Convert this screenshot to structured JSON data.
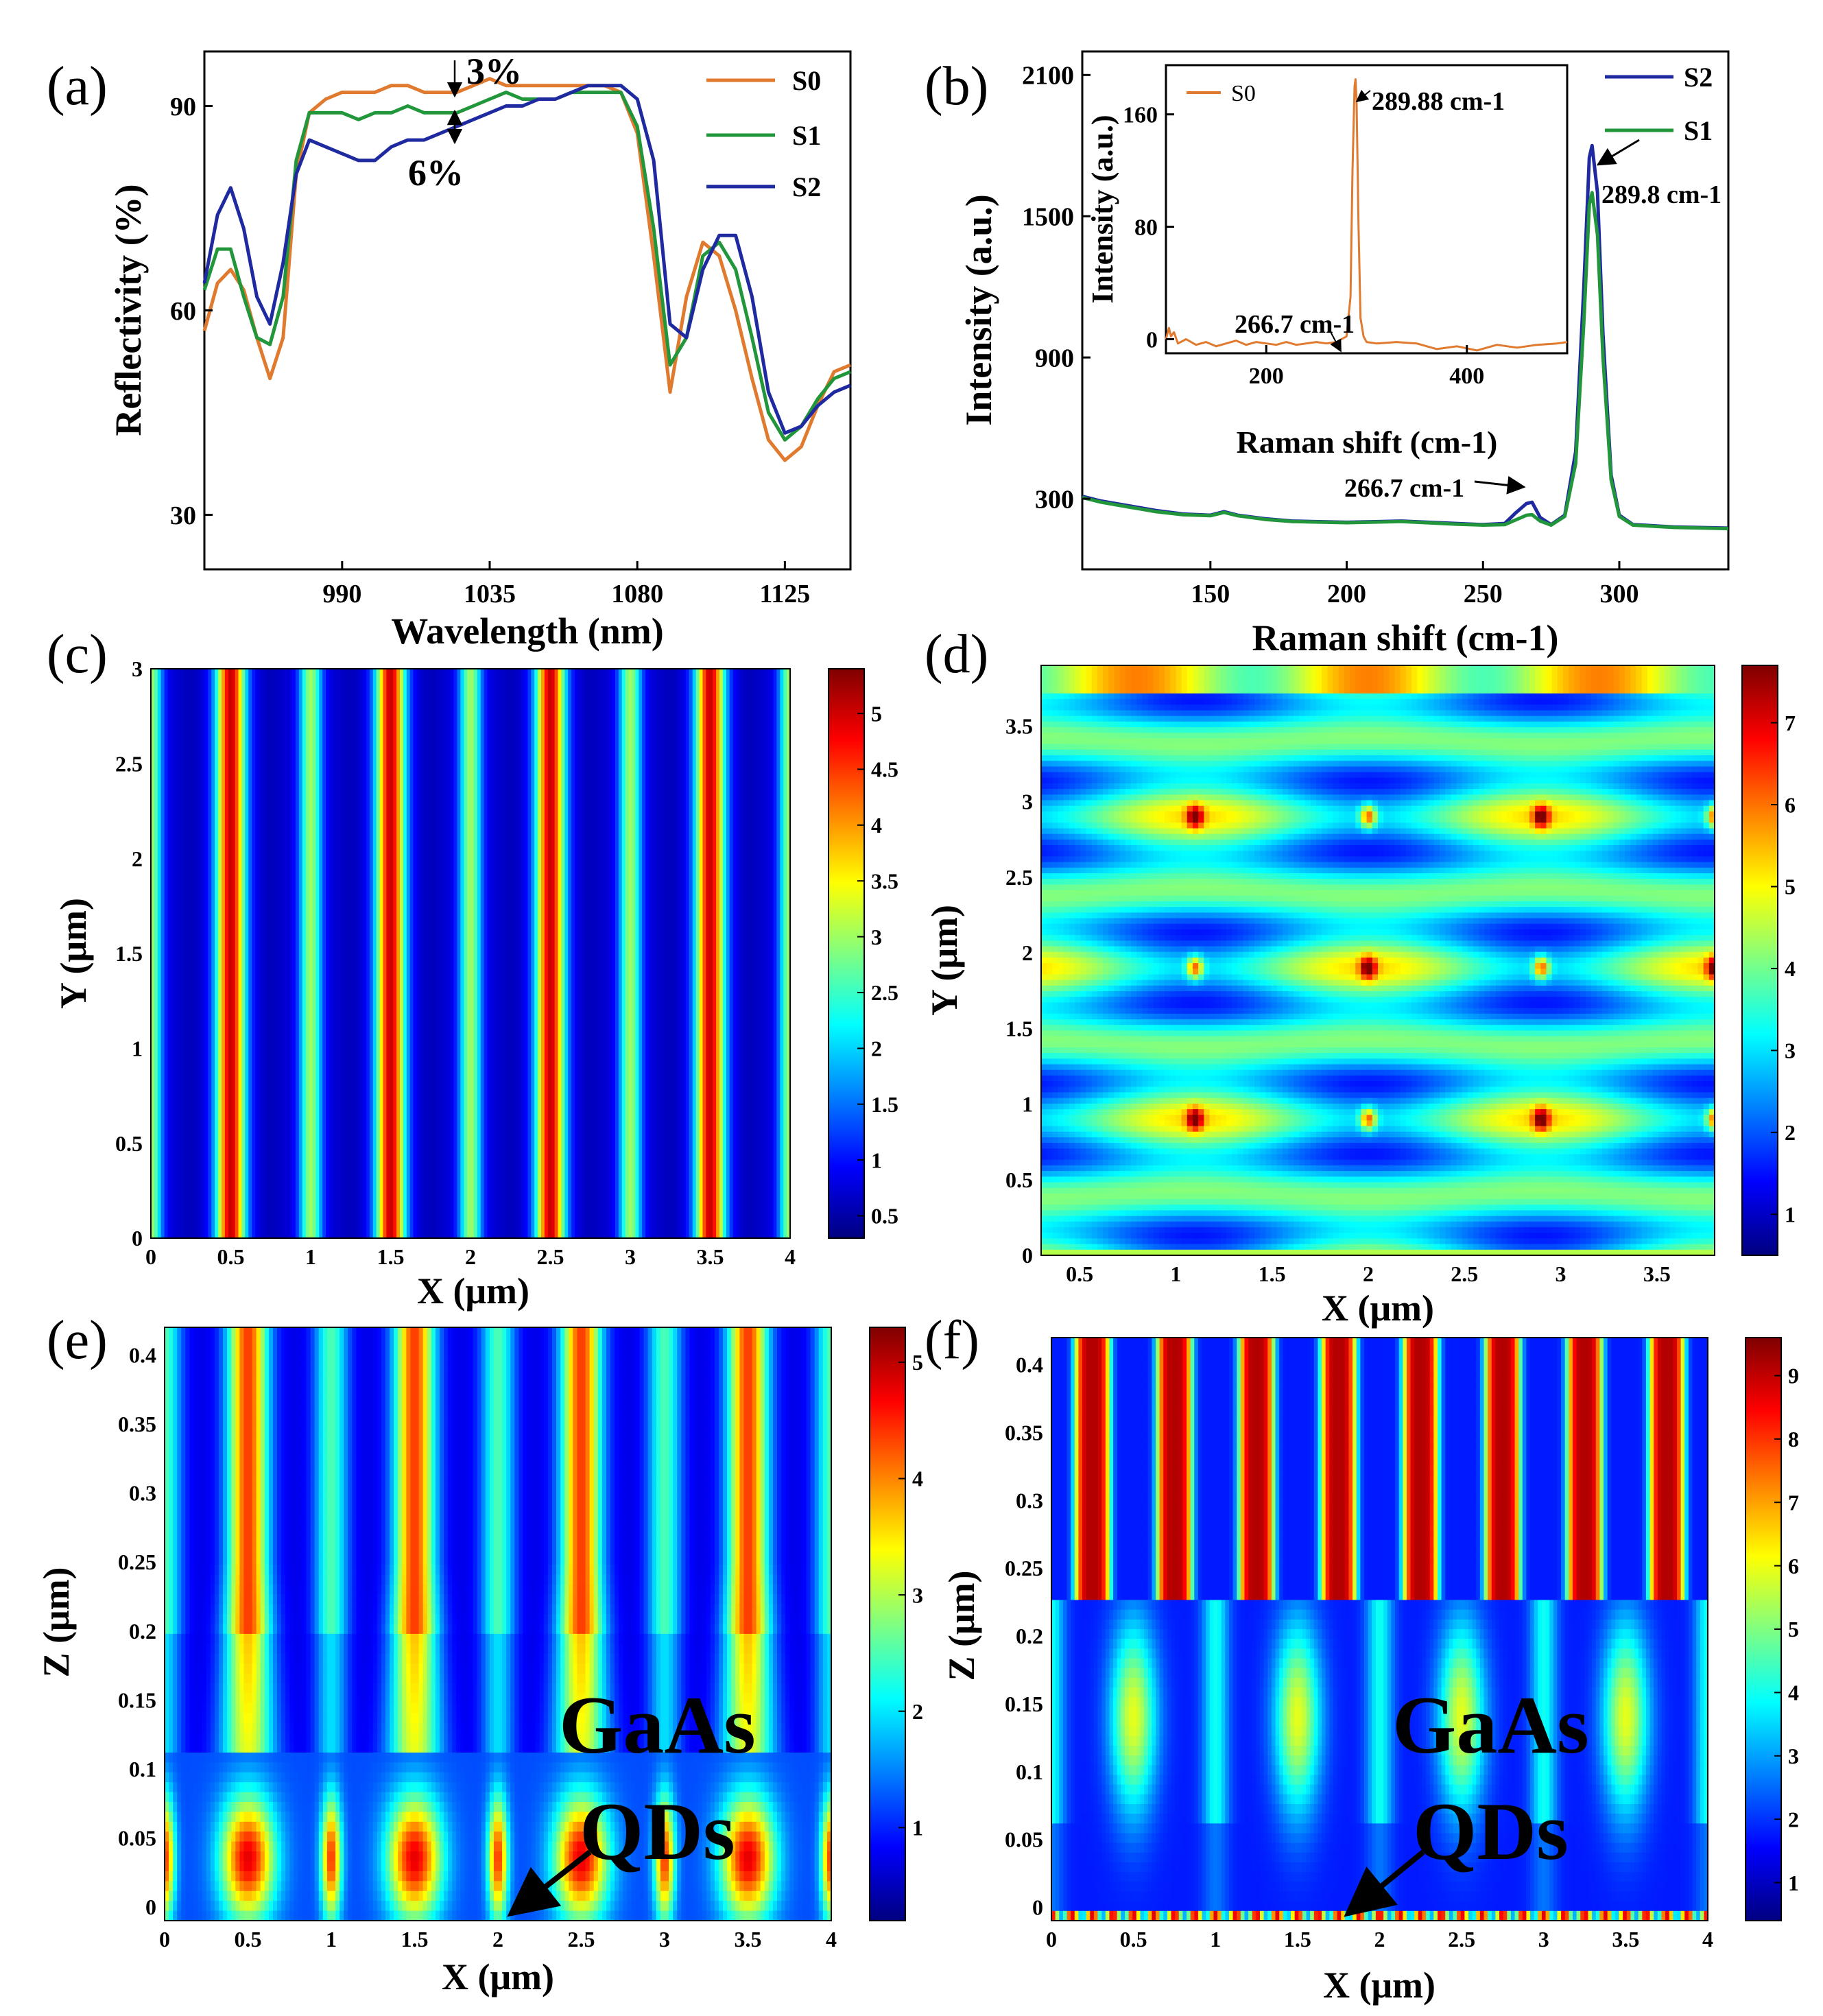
{
  "colors": {
    "s0": "#e07a2f",
    "s1": "#22963a",
    "s2": "#1f2aa0",
    "jet": [
      "#00007f",
      "#0000ff",
      "#0080ff",
      "#00ffff",
      "#80ff80",
      "#ffff00",
      "#ff8000",
      "#ff0000",
      "#7f0000"
    ]
  },
  "chart_data": [
    {
      "panel": "(a)",
      "type": "line",
      "xlabel": "Wavelength (nm)",
      "ylabel": "Reflectivity (%)",
      "xlim": [
        948,
        1145
      ],
      "ylim": [
        22,
        98
      ],
      "xticks": [
        "990",
        "1035",
        "1080",
        "1125"
      ],
      "yticks": [
        "30",
        "60",
        "90"
      ],
      "legend": [
        "S0",
        "S1",
        "S2"
      ],
      "annotations": [
        "3%",
        "6%"
      ],
      "series": [
        {
          "name": "S0",
          "x": [
            948,
            952,
            956,
            960,
            964,
            968,
            972,
            976,
            980,
            985,
            990,
            995,
            1000,
            1005,
            1010,
            1015,
            1020,
            1025,
            1030,
            1035,
            1040,
            1045,
            1050,
            1055,
            1060,
            1065,
            1070,
            1075,
            1080,
            1085,
            1090,
            1095,
            1100,
            1105,
            1110,
            1115,
            1120,
            1125,
            1130,
            1135,
            1140,
            1145
          ],
          "values": [
            57,
            64,
            66,
            63,
            56,
            50,
            56,
            80,
            89,
            91,
            92,
            92,
            92,
            93,
            93,
            92,
            92,
            92,
            93,
            94,
            93,
            93,
            93,
            93,
            93,
            93,
            93,
            92,
            86,
            68,
            48,
            62,
            70,
            68,
            60,
            50,
            41,
            38,
            40,
            46,
            51,
            52
          ]
        },
        {
          "name": "S1",
          "x": [
            948,
            952,
            956,
            960,
            964,
            968,
            972,
            976,
            980,
            985,
            990,
            995,
            1000,
            1005,
            1010,
            1015,
            1020,
            1025,
            1030,
            1035,
            1040,
            1045,
            1050,
            1055,
            1060,
            1065,
            1070,
            1075,
            1080,
            1085,
            1090,
            1095,
            1100,
            1105,
            1110,
            1115,
            1120,
            1125,
            1130,
            1135,
            1140,
            1145
          ],
          "values": [
            63,
            69,
            69,
            62,
            56,
            55,
            62,
            82,
            89,
            89,
            89,
            88,
            89,
            89,
            90,
            89,
            89,
            89,
            90,
            91,
            92,
            91,
            91,
            91,
            92,
            92,
            92,
            92,
            87,
            72,
            52,
            56,
            68,
            70,
            66,
            56,
            45,
            41,
            43,
            47,
            50,
            51
          ]
        },
        {
          "name": "S2",
          "x": [
            948,
            952,
            956,
            960,
            964,
            968,
            972,
            976,
            980,
            985,
            990,
            995,
            1000,
            1005,
            1010,
            1015,
            1020,
            1025,
            1030,
            1035,
            1040,
            1045,
            1050,
            1055,
            1060,
            1065,
            1070,
            1075,
            1080,
            1085,
            1090,
            1095,
            1100,
            1105,
            1110,
            1115,
            1120,
            1125,
            1130,
            1135,
            1140,
            1145
          ],
          "values": [
            64,
            74,
            78,
            72,
            62,
            58,
            67,
            80,
            85,
            84,
            83,
            82,
            82,
            84,
            85,
            85,
            86,
            87,
            88,
            89,
            90,
            90,
            91,
            91,
            92,
            93,
            93,
            93,
            91,
            82,
            58,
            56,
            66,
            71,
            71,
            62,
            48,
            42,
            43,
            46,
            48,
            49
          ]
        }
      ]
    },
    {
      "panel": "(b)",
      "type": "line",
      "xlabel": "Raman shift (cm-1)",
      "ylabel": "Intensity (a.u.)",
      "xlim": [
        103,
        340
      ],
      "ylim": [
        0,
        2200
      ],
      "xticks": [
        "150",
        "200",
        "250",
        "300"
      ],
      "yticks": [
        "300",
        "900",
        "1500",
        "2100"
      ],
      "legend": [
        "S2",
        "S1"
      ],
      "annotations": [
        "266.7 cm-1",
        "289.8 cm-1"
      ],
      "series": [
        {
          "name": "S2",
          "x": [
            103,
            110,
            120,
            130,
            140,
            150,
            155,
            160,
            170,
            180,
            200,
            220,
            240,
            250,
            258,
            262,
            266,
            268,
            271,
            275,
            280,
            284,
            287,
            289,
            290,
            292,
            294,
            297,
            300,
            305,
            320,
            340
          ],
          "values": [
            310,
            290,
            270,
            250,
            235,
            230,
            245,
            230,
            215,
            205,
            200,
            205,
            195,
            190,
            195,
            240,
            280,
            285,
            220,
            190,
            230,
            500,
            1200,
            1750,
            1800,
            1600,
            1000,
            400,
            230,
            190,
            180,
            175
          ]
        },
        {
          "name": "S1",
          "x": [
            103,
            110,
            120,
            130,
            140,
            150,
            155,
            160,
            170,
            180,
            200,
            220,
            240,
            250,
            258,
            262,
            266,
            268,
            271,
            275,
            280,
            284,
            287,
            289,
            290,
            292,
            294,
            297,
            300,
            305,
            320,
            340
          ],
          "values": [
            305,
            285,
            265,
            245,
            232,
            228,
            242,
            228,
            212,
            203,
            198,
            203,
            192,
            188,
            190,
            210,
            230,
            232,
            205,
            188,
            225,
            450,
            1050,
            1550,
            1600,
            1420,
            900,
            380,
            225,
            188,
            178,
            173
          ]
        }
      ],
      "inset": {
        "type": "line",
        "xlabel": "Raman shift (cm-1)",
        "ylabel": "Intensity (a.u.)",
        "xlim": [
          100,
          500
        ],
        "ylim": [
          -10,
          195
        ],
        "xticks": [
          "200",
          "400"
        ],
        "yticks": [
          "0",
          "80",
          "160"
        ],
        "legend": [
          "S0"
        ],
        "annotations": [
          "289.88 cm-1",
          "266.7 cm-1"
        ],
        "series": [
          {
            "name": "S0",
            "x": [
              100,
              103,
              105,
              108,
              112,
              120,
              130,
              140,
              150,
              160,
              170,
              180,
              190,
              200,
              210,
              220,
              230,
              240,
              250,
              260,
              270,
              275,
              280,
              284,
              286,
              288,
              289,
              290,
              292,
              294,
              297,
              300,
              310,
              330,
              350,
              370,
              390,
              410,
              430,
              450,
              470,
              490,
              500
            ],
            "values": [
              0,
              8,
              2,
              5,
              -3,
              0,
              -4,
              -2,
              -5,
              -3,
              -1,
              -4,
              -2,
              -3,
              -4,
              -2,
              -4,
              -3,
              -2,
              -3,
              -2,
              0,
              2,
              30,
              120,
              180,
              185,
              170,
              80,
              15,
              2,
              -2,
              -3,
              -2,
              -3,
              -7,
              -5,
              -8,
              -4,
              -6,
              -4,
              -3,
              -2
            ]
          }
        ]
      }
    },
    {
      "panel": "(c)",
      "type": "heatmap",
      "xlabel": "X (μm)",
      "ylabel": "Y (μm)",
      "xlim": [
        0,
        4
      ],
      "ylim": [
        0,
        3
      ],
      "xticks": [
        "0",
        "0.5",
        "1",
        "1.5",
        "2",
        "2.5",
        "3",
        "3.5",
        "4"
      ],
      "yticks": [
        "0",
        "0.5",
        "1",
        "1.5",
        "2",
        "2.5",
        "3"
      ],
      "colorbar": {
        "min": 0.3,
        "max": 5.4,
        "ticks": [
          "0.5",
          "1",
          "1.5",
          "2",
          "2.5",
          "3",
          "3.5",
          "4",
          "4.5",
          "5"
        ]
      }
    },
    {
      "panel": "(d)",
      "type": "heatmap",
      "xlabel": "X (μm)",
      "ylabel": "Y (μm)",
      "xlim": [
        0.3,
        3.8
      ],
      "ylim": [
        0,
        3.9
      ],
      "xticks": [
        "0.5",
        "1",
        "1.5",
        "2",
        "2.5",
        "3",
        "3.5"
      ],
      "yticks": [
        "0",
        "0.5",
        "1",
        "1.5",
        "2",
        "2.5",
        "3",
        "3.5"
      ],
      "colorbar": {
        "min": 0.5,
        "max": 7.7,
        "ticks": [
          "1",
          "2",
          "3",
          "4",
          "5",
          "6",
          "7"
        ]
      }
    },
    {
      "panel": "(e)",
      "type": "heatmap",
      "xlabel": "X (μm)",
      "ylabel": "Z (μm)",
      "xlim": [
        0,
        4
      ],
      "ylim": [
        -0.01,
        0.42
      ],
      "xticks": [
        "0",
        "0.5",
        "1",
        "1.5",
        "2",
        "2.5",
        "3",
        "3.5",
        "4"
      ],
      "yticks": [
        "0",
        "0.05",
        "0.1",
        "0.15",
        "0.2",
        "0.25",
        "0.3",
        "0.35",
        "0.4"
      ],
      "labels": [
        "GaAs",
        "QDs"
      ],
      "colorbar": {
        "min": 0.2,
        "max": 5.3,
        "ticks": [
          "1",
          "2",
          "3",
          "4",
          "5"
        ]
      }
    },
    {
      "panel": "(f)",
      "type": "heatmap",
      "xlabel": "X (μm)",
      "ylabel": "Z (μm)",
      "xlim": [
        0,
        4
      ],
      "ylim": [
        -0.01,
        0.42
      ],
      "xticks": [
        "0",
        "0.5",
        "1",
        "1.5",
        "2",
        "2.5",
        "3",
        "3.5",
        "4"
      ],
      "yticks": [
        "0",
        "0.05",
        "0.1",
        "0.15",
        "0.2",
        "0.25",
        "0.3",
        "0.35",
        "0.4"
      ],
      "labels": [
        "GaAs",
        "QDs"
      ],
      "colorbar": {
        "min": 0.4,
        "max": 9.6,
        "ticks": [
          "1",
          "2",
          "3",
          "4",
          "5",
          "6",
          "7",
          "8",
          "9"
        ]
      }
    }
  ]
}
